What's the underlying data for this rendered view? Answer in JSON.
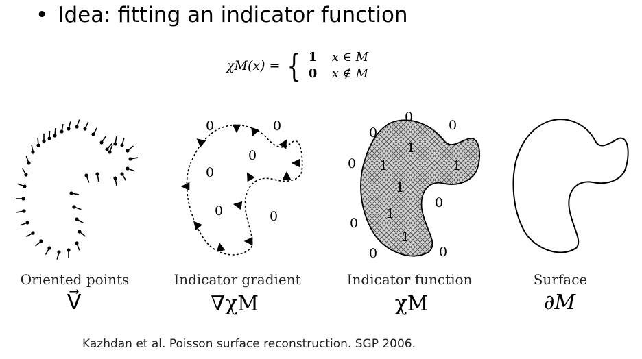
{
  "slide": {
    "bullet": "Idea: fitting an indicator function",
    "citation": "Kazhdan et al. Poisson surface reconstruction. SGP 2006."
  },
  "formula": {
    "lhs": "χM(x) =",
    "case_inside_value": "1",
    "case_inside_cond": "x ∈ M",
    "case_outside_value": "0",
    "case_outside_cond": "x ∉ M"
  },
  "panels": [
    {
      "caption": "Oriented points",
      "symbol": "V⃗"
    },
    {
      "caption": "Indicator gradient",
      "symbol": "∇χM"
    },
    {
      "caption": "Indicator function",
      "symbol": "χM"
    },
    {
      "caption": "Surface",
      "symbol": "∂M"
    }
  ],
  "gradient_labels": [
    "0",
    "0",
    "0",
    "0",
    "0",
    "0"
  ],
  "function_outside_labels": [
    "0",
    "0",
    "0",
    "0",
    "0",
    "0",
    "0",
    "0"
  ],
  "function_inside_labels": [
    "1",
    "1",
    "1",
    "1",
    "1",
    "1"
  ]
}
